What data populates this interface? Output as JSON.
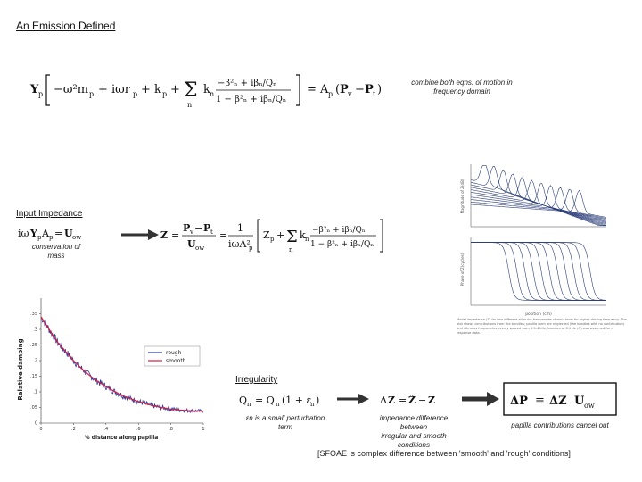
{
  "slide": {
    "title": "An Emission Defined",
    "top_equation": "Yp[−ω²mp + iωrp + kp + Σn kn (−βn² + iβn/Qn)/(1 − βn² + iβn/Qn)] = Ap(Pv − Pt)",
    "top_note_line1": "combine both eqns. of motion in",
    "top_note_line2": "frequency domain",
    "input_impedance": {
      "heading": "Input Impedance",
      "equation": "iωYpAp = Uow",
      "note_line1": "conservation of",
      "note_line2": "mass",
      "z_equation": "Z = (Pv − Pt)/Uow = 1/(iωAp²)[Zp + Σn kn (−βn² + iβn/Qn)/(1 − βn² + iβn/Qn)]"
    },
    "irregularity": {
      "heading": "Irregularity",
      "q_equation": "Q̃n = Qn(1 + εn)",
      "q_note_line1": "εn is a small perturbation",
      "q_note_line2": "term",
      "dz_equation": "ΔZ = Z̃ − Z",
      "dz_note_line1": "impedance difference between",
      "dz_note_line2": "irregular and smooth conditions",
      "boxed_equation": "ΔP ≡ ΔZ Uow",
      "boxed_note": "papilla contributions cancel out"
    },
    "bottom_caption": "[SFOAE is complex difference between 'smooth' and 'rough' conditions]",
    "right_caption": "Model impedance (Z) for two different stimulus frequencies shown. Inset for higher driving frequency. The plot shows contributions from the bundles; papilla form are neglected (the bundles with no contribution) and stimulus frequencies evenly spaced from 0.5-4 kHz; bundles at 0.1 Hz (Q) was assumed for a response data."
  },
  "chart_data": [
    {
      "type": "line",
      "title": "",
      "xlabel": "% distance along papilla",
      "ylabel": "Relative damping",
      "xlim": [
        0,
        1
      ],
      "ylim": [
        0,
        0.4
      ],
      "x_ticks": [
        "0",
        ".2",
        ".4",
        ".6",
        ".8",
        "1"
      ],
      "y_ticks": [
        "0",
        ".05",
        ".1",
        ".15",
        ".2",
        ".25",
        ".3",
        ".35"
      ],
      "legend": "top-right",
      "grid": false,
      "series": [
        {
          "name": "rough",
          "color": "#2b3a9b",
          "x": [
            0,
            0.05,
            0.1,
            0.15,
            0.2,
            0.25,
            0.3,
            0.35,
            0.4,
            0.45,
            0.5,
            0.55,
            0.6,
            0.65,
            0.7,
            0.75,
            0.8,
            0.85,
            0.9,
            0.95,
            1.0
          ],
          "values": [
            0.34,
            0.3,
            0.26,
            0.23,
            0.2,
            0.175,
            0.152,
            0.133,
            0.117,
            0.102,
            0.089,
            0.078,
            0.069,
            0.061,
            0.054,
            0.049,
            0.045,
            0.042,
            0.04,
            0.039,
            0.038
          ]
        },
        {
          "name": "smooth",
          "color": "#d81b3c",
          "x": [
            0,
            0.05,
            0.1,
            0.15,
            0.2,
            0.25,
            0.3,
            0.35,
            0.4,
            0.45,
            0.5,
            0.55,
            0.6,
            0.65,
            0.7,
            0.75,
            0.8,
            0.85,
            0.9,
            0.95,
            1.0
          ],
          "values": [
            0.34,
            0.3,
            0.26,
            0.23,
            0.2,
            0.175,
            0.152,
            0.133,
            0.117,
            0.102,
            0.089,
            0.078,
            0.069,
            0.061,
            0.054,
            0.049,
            0.045,
            0.042,
            0.04,
            0.039,
            0.038
          ]
        }
      ]
    },
    {
      "type": "line",
      "title": "",
      "xlabel": "",
      "ylabel": "Magnitude of Z(dB)",
      "xlim": [
        0,
        1
      ],
      "ylim": [
        0,
        1
      ],
      "legend": "none",
      "grid": false,
      "series_color": "#2c3f7a",
      "peak_positions": [
        0.1,
        0.17,
        0.24,
        0.31,
        0.38,
        0.45,
        0.52,
        0.59,
        0.66,
        0.73,
        0.8
      ]
    },
    {
      "type": "line",
      "title": "",
      "xlabel": "position (cm)",
      "ylabel": "Phase of Z(cycles)",
      "xlim": [
        0,
        1
      ],
      "ylim": [
        -0.5,
        0
      ],
      "legend": "none",
      "grid": false,
      "series_color": "#2c3f7a",
      "step_positions": [
        0.28,
        0.34,
        0.4,
        0.46,
        0.52,
        0.58,
        0.64,
        0.7,
        0.76,
        0.82,
        0.88
      ]
    }
  ]
}
